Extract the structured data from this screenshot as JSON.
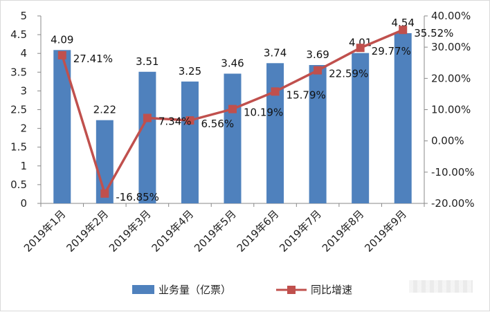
{
  "chart_data": {
    "type": "bar+line",
    "categories": [
      "2019年1月",
      "2019年2月",
      "2019年3月",
      "2019年4月",
      "2019年5月",
      "2019年6月",
      "2019年7月",
      "2019年8月",
      "2019年9月"
    ],
    "series": [
      {
        "name": "业务量（亿票）",
        "type": "bar",
        "axis": "left",
        "color": "#4f81bd",
        "values": [
          4.09,
          2.22,
          3.51,
          3.25,
          3.46,
          3.74,
          3.69,
          4.01,
          4.54
        ],
        "labels": [
          "4.09",
          "2.22",
          "3.51",
          "3.25",
          "3.46",
          "3.74",
          "3.69",
          "4.01",
          "4.54"
        ]
      },
      {
        "name": "同比增速",
        "type": "line",
        "axis": "right",
        "color": "#c0504d",
        "values": [
          27.41,
          -16.85,
          7.34,
          6.56,
          10.19,
          15.79,
          22.59,
          29.77,
          35.52
        ],
        "labels": [
          "27.41%",
          "-16.85%",
          "7.34%",
          "6.56%",
          "10.19%",
          "15.79%",
          "22.59%",
          "29.77%",
          "35.52%"
        ]
      }
    ],
    "y_left": {
      "min": 0,
      "max": 5,
      "ticks": [
        "0",
        "0.5",
        "1",
        "1.5",
        "2",
        "2.5",
        "3",
        "3.5",
        "4",
        "4.5",
        "5"
      ]
    },
    "y_right": {
      "min": -20,
      "max": 40,
      "ticks": [
        "-20.00%",
        "-10.00%",
        "0.00%",
        "10.00%",
        "20.00%",
        "30.00%",
        "40.00%"
      ]
    },
    "grid": false,
    "legend_position": "bottom"
  }
}
